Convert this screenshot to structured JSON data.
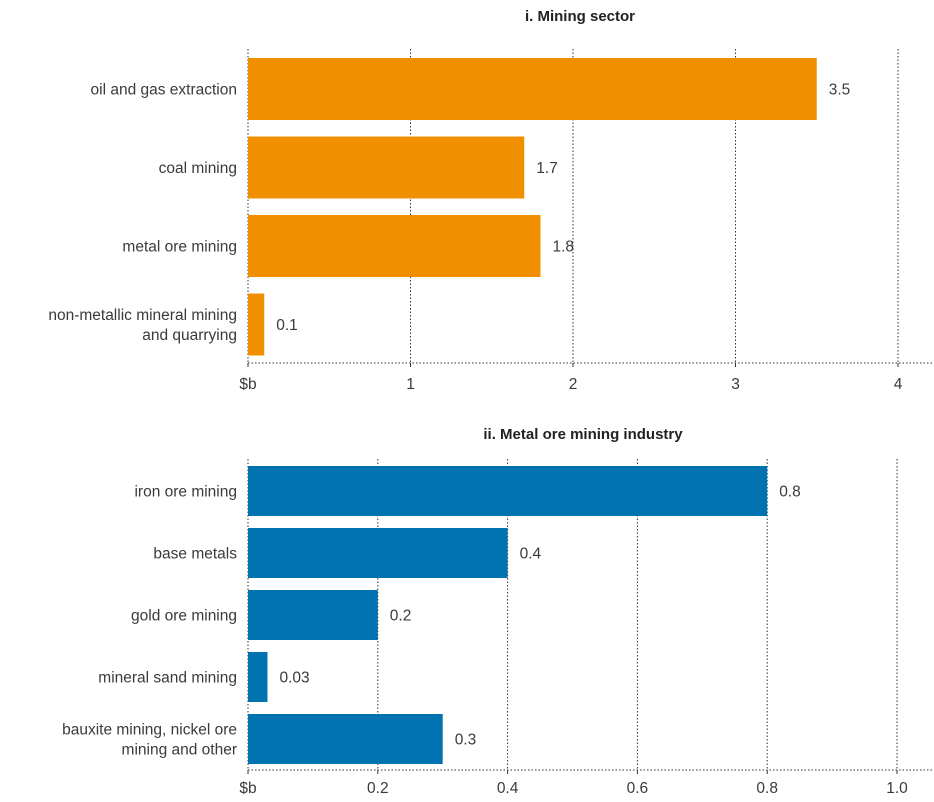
{
  "chart_data": [
    {
      "type": "bar",
      "orientation": "horizontal",
      "title": "i. Mining sector",
      "categories": [
        [
          "oil and gas extraction"
        ],
        [
          "coal mining"
        ],
        [
          "metal ore mining"
        ],
        [
          "non-metallic mineral mining",
          "and quarrying"
        ]
      ],
      "values": [
        3.5,
        1.7,
        1.8,
        0.1
      ],
      "value_labels": [
        "3.5",
        "1.7",
        "1.8",
        "0.1"
      ],
      "unit_label": "$b",
      "xlim": [
        0,
        4.2
      ],
      "ticks": [
        1,
        2,
        3,
        4
      ],
      "tick_labels": [
        "1",
        "2",
        "3",
        "4"
      ],
      "grid": true,
      "color": "#f09000"
    },
    {
      "type": "bar",
      "orientation": "horizontal",
      "title": "ii. Metal ore mining industry",
      "categories": [
        [
          "iron ore mining"
        ],
        [
          "base metals"
        ],
        [
          "gold ore mining"
        ],
        [
          "mineral sand mining"
        ],
        [
          "bauxite mining, nickel ore",
          "mining and other"
        ]
      ],
      "values": [
        0.8,
        0.4,
        0.2,
        0.03,
        0.3
      ],
      "value_labels": [
        "0.8",
        "0.4",
        "0.2",
        "0.03",
        "0.3"
      ],
      "unit_label": "$b",
      "xlim": [
        0,
        1.05
      ],
      "ticks": [
        0.2,
        0.4,
        0.6,
        0.8,
        1.0
      ],
      "tick_labels": [
        "0.2",
        "0.4",
        "0.6",
        "0.8",
        "1.0"
      ],
      "grid": true,
      "color": "#0073b0"
    }
  ]
}
